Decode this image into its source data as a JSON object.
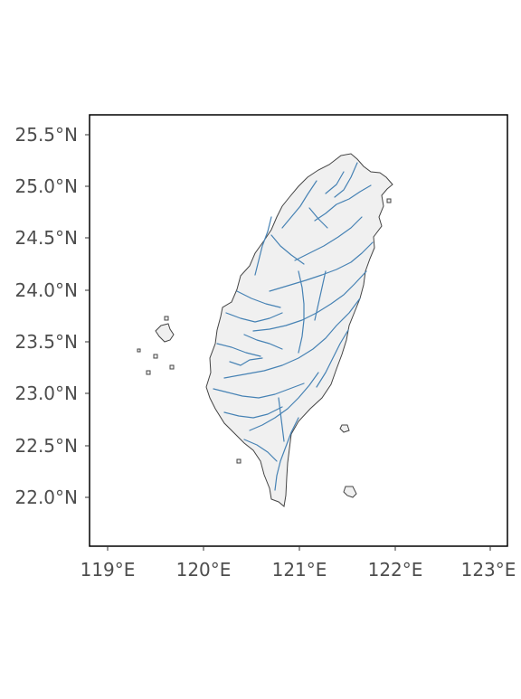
{
  "map": {
    "x_ticks": [
      "119°E",
      "120°E",
      "121°E",
      "122°E",
      "123°E"
    ],
    "y_ticks": [
      "22.0°N",
      "22.5°N",
      "23.0°N",
      "23.5°N",
      "24.0°N",
      "24.5°N",
      "25.0°N",
      "25.5°N"
    ],
    "x_range_deg": [
      118.8,
      123.2
    ],
    "y_range_deg": [
      21.6,
      25.8
    ],
    "land_color": "#f0f0f0",
    "coast_color": "#444444",
    "river_color": "#4682b4",
    "grid": false
  }
}
